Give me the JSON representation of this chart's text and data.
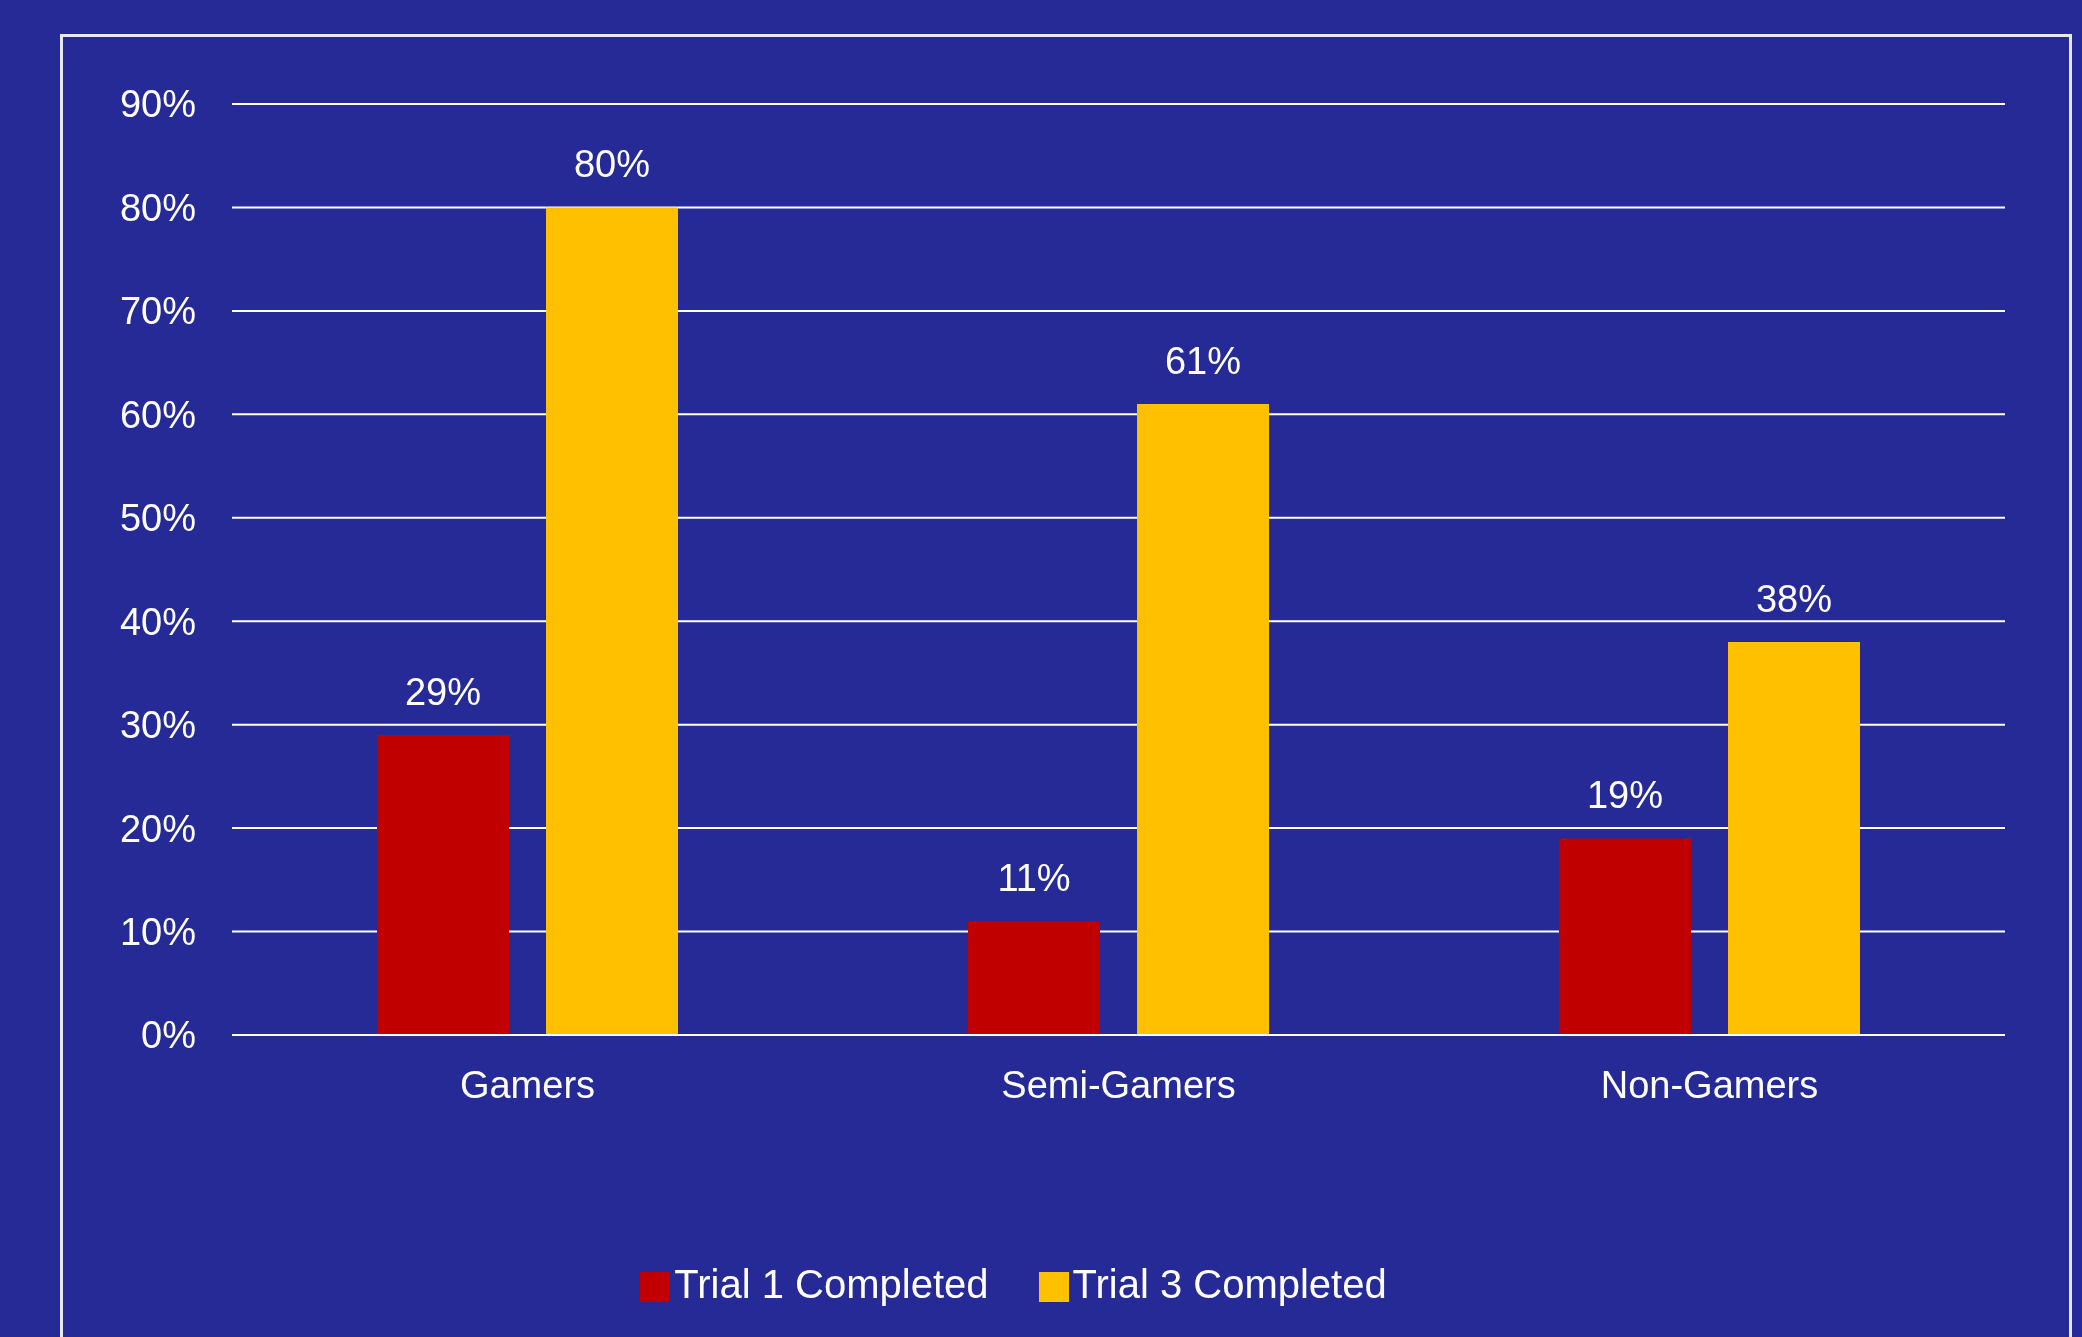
{
  "chart_data": {
    "type": "bar",
    "categories": [
      "Gamers",
      "Semi-Gamers",
      "Non-Gamers"
    ],
    "series": [
      {
        "name": "Trial 1 Completed",
        "color": "#c00000",
        "values": [
          29,
          11,
          19
        ],
        "value_labels": [
          "29%",
          "11%",
          "19%"
        ]
      },
      {
        "name": "Trial 3 Completed",
        "color": "#ffc000",
        "values": [
          80,
          61,
          38
        ],
        "value_labels": [
          "80%",
          "61%",
          "38%"
        ]
      }
    ],
    "ylim": [
      0,
      90
    ],
    "yticks": [
      {
        "value": 0,
        "label": "0%"
      },
      {
        "value": 10,
        "label": "10%"
      },
      {
        "value": 20,
        "label": "20%"
      },
      {
        "value": 30,
        "label": "30%"
      },
      {
        "value": 40,
        "label": "40%"
      },
      {
        "value": 50,
        "label": "50%"
      },
      {
        "value": 60,
        "label": "60%"
      },
      {
        "value": 70,
        "label": "70%"
      },
      {
        "value": 80,
        "label": "80%"
      },
      {
        "value": 90,
        "label": "90%"
      }
    ],
    "grid": "y",
    "legend": "bottom"
  }
}
